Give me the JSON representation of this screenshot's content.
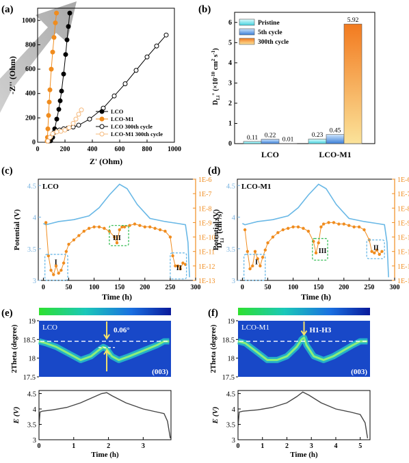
{
  "panels": {
    "a": "(a)",
    "b": "(b)",
    "c": "(c)",
    "d": "(d)",
    "e": "(e)",
    "f": "(f)"
  },
  "chart_data": [
    {
      "id": "a",
      "type": "scatter",
      "xlabel": "Z' (Ohm)",
      "ylabel": "-Z'' (Ohm)",
      "xlim": [
        0,
        1000
      ],
      "ylim": [
        0,
        1100
      ],
      "xticks": [
        0,
        200,
        400,
        600,
        800,
        1000
      ],
      "yticks": [
        0,
        200,
        400,
        600,
        800,
        1000
      ],
      "legend_position": "bottom-right",
      "series": [
        {
          "name": "LCO",
          "color": "#000000",
          "marker": "filled-circle",
          "x": [
            95,
            110,
            125,
            140,
            155,
            165,
            175,
            190,
            205,
            215,
            225,
            235
          ],
          "y": [
            12,
            40,
            110,
            190,
            270,
            340,
            420,
            560,
            720,
            840,
            950,
            1060
          ]
        },
        {
          "name": "LCO-M1",
          "color": "#f08c1e",
          "marker": "filled-circle",
          "x": [
            70,
            72,
            75,
            80,
            85,
            90,
            100,
            110,
            120,
            130,
            138
          ],
          "y": [
            10,
            40,
            110,
            220,
            330,
            430,
            600,
            740,
            860,
            980,
            1060
          ]
        },
        {
          "name": "LCO 300th cycle",
          "color": "#000000",
          "marker": "open-circle",
          "x": [
            80,
            100,
            120,
            140,
            160,
            190,
            220,
            260,
            300,
            380,
            480,
            560,
            640,
            720,
            800,
            870,
            940
          ],
          "y": [
            10,
            45,
            80,
            95,
            100,
            110,
            115,
            125,
            140,
            190,
            280,
            380,
            480,
            590,
            700,
            790,
            880
          ]
        },
        {
          "name": "LCO-M1 300th cycle",
          "color": "#f5b87a",
          "marker": "open-circle",
          "x": [
            75,
            90,
            110,
            140,
            170,
            200,
            230,
            260,
            280,
            300,
            320
          ],
          "y": [
            10,
            40,
            70,
            85,
            90,
            100,
            120,
            155,
            190,
            230,
            265
          ]
        }
      ]
    },
    {
      "id": "b",
      "type": "bar",
      "ylabel": "D Li+ (×10-10 cm2 s-1)",
      "ylabel_main": "D",
      "ylabel_sub": "Li",
      "ylabel_rest": " (×10",
      "ylabel_exp": "-10",
      "ylabel_tail": "cm",
      "categories": [
        "LCO",
        "LCO-M1"
      ],
      "ylim": [
        0,
        6.5
      ],
      "yticks": [
        0,
        1,
        2,
        3,
        4,
        5,
        6
      ],
      "legend_position": "top-left",
      "series": [
        {
          "name": "Pristine",
          "color": "#7ee8f0",
          "values": [
            0.11,
            0.23
          ]
        },
        {
          "name": "5th cycle",
          "color": "#5aa0e6",
          "values": [
            0.22,
            0.45
          ]
        },
        {
          "name": "300th cycle",
          "color": "#f39a3c",
          "values": [
            0.01,
            5.92
          ]
        }
      ],
      "value_labels": [
        "0.11",
        "0.22",
        "0.01",
        "0.23",
        "0.45",
        "5.92"
      ]
    },
    {
      "id": "c",
      "type": "line",
      "title": "LCO",
      "xlabel": "Time (h)",
      "ylabel_left": "Potential (V)",
      "ylabel_right": "D Li+ (cm2/s)",
      "xlim": [
        -10,
        300
      ],
      "xticks": [
        0,
        50,
        100,
        150,
        200,
        250,
        300
      ],
      "ylim_left": [
        3,
        4.6
      ],
      "yticks_left": [
        3,
        3.5,
        4,
        4.5
      ],
      "yticks_right": [
        "1E-6",
        "1E-7",
        "1E-8",
        "1E-9",
        "1E-10",
        "1E-11",
        "1E-12",
        "1E-13"
      ],
      "regions": [
        "I",
        "II",
        "III"
      ],
      "potential": {
        "color": "#69b8e6",
        "x": [
          0,
          5,
          15,
          30,
          60,
          90,
          110,
          130,
          150,
          165,
          185,
          210,
          240,
          265,
          280,
          285,
          288
        ],
        "y": [
          3.9,
          3.88,
          3.9,
          3.93,
          3.96,
          4.02,
          4.15,
          4.35,
          4.52,
          4.45,
          4.2,
          3.98,
          3.93,
          3.9,
          3.88,
          3.6,
          3.05
        ]
      },
      "diffusion": {
        "color": "#f08c1e",
        "x": [
          5,
          10,
          15,
          20,
          25,
          30,
          35,
          40,
          45,
          50,
          60,
          70,
          80,
          90,
          100,
          110,
          120,
          130,
          140,
          145,
          150,
          155,
          160,
          170,
          180,
          190,
          200,
          210,
          220,
          230,
          240,
          250,
          255,
          260,
          265,
          270,
          275,
          280
        ],
        "y": [
          -9.0,
          -11.3,
          -12.3,
          -12.6,
          -12.0,
          -12.5,
          -12.3,
          -11.8,
          -11.0,
          -10.5,
          -10.2,
          -9.9,
          -9.6,
          -9.4,
          -9.3,
          -9.3,
          -9.4,
          -9.6,
          -10.0,
          -10.4,
          -9.5,
          -9.3,
          -9.3,
          -9.2,
          -9.1,
          -9.2,
          -9.3,
          -9.3,
          -9.4,
          -9.5,
          -9.6,
          -10.0,
          -11.3,
          -12.0,
          -12.0,
          -12.2,
          -11.8,
          -11.9
        ]
      }
    },
    {
      "id": "d",
      "type": "line",
      "title": "LCO-M1",
      "xlabel": "Time (h)",
      "ylabel_left": "Potential (V)",
      "ylabel_right": "D Li+ (cm2/s)",
      "xlim": [
        -10,
        300
      ],
      "xticks": [
        0,
        50,
        100,
        150,
        200,
        250,
        300
      ],
      "ylim_left": [
        3,
        4.6
      ],
      "yticks_left": [
        3,
        3.5,
        4,
        4.5
      ],
      "yticks_right": [
        "1E-6",
        "1E-7",
        "1E-8",
        "1E-9",
        "1E-10",
        "1E-11",
        "1E-12",
        "1E-13"
      ],
      "regions": [
        "I",
        "III",
        "II"
      ],
      "potential": {
        "color": "#69b8e6",
        "x": [
          0,
          5,
          15,
          30,
          60,
          90,
          110,
          130,
          150,
          165,
          185,
          210,
          240,
          265,
          280,
          285,
          288
        ],
        "y": [
          3.9,
          3.88,
          3.9,
          3.93,
          3.96,
          4.02,
          4.15,
          4.35,
          4.52,
          4.45,
          4.2,
          3.98,
          3.93,
          3.9,
          3.88,
          3.6,
          3.05
        ]
      },
      "diffusion": {
        "color": "#f08c1e",
        "x": [
          5,
          10,
          15,
          20,
          25,
          30,
          35,
          40,
          45,
          50,
          60,
          70,
          80,
          90,
          100,
          110,
          120,
          130,
          140,
          145,
          150,
          155,
          160,
          170,
          180,
          190,
          200,
          210,
          220,
          230,
          240,
          250,
          255,
          260,
          265,
          270,
          275
        ],
        "y": [
          -9.5,
          -11.0,
          -12.2,
          -12.0,
          -11.0,
          -11.5,
          -12.0,
          -11.4,
          -10.9,
          -10.4,
          -10.0,
          -9.7,
          -9.5,
          -9.4,
          -9.3,
          -9.3,
          -9.4,
          -9.6,
          -10.3,
          -11.1,
          -10.4,
          -9.3,
          -9.1,
          -9.0,
          -9.0,
          -9.1,
          -9.1,
          -9.2,
          -9.3,
          -9.3,
          -9.5,
          -10.2,
          -11.0,
          -11.1,
          -10.9,
          -11.2,
          -11.0
        ]
      }
    },
    {
      "id": "e",
      "type": "heatmap",
      "title": "LCO",
      "ylabel": "2Theta (degree)",
      "ylim": [
        17.5,
        19
      ],
      "yticks": [
        17.5,
        18,
        18.5,
        19
      ],
      "peak_label": "(003)",
      "annotation": "0.06°",
      "peak_track": {
        "x": [
          0,
          0.2,
          0.5,
          0.9,
          1.2,
          1.5,
          1.7,
          1.85,
          1.95,
          2.1,
          2.3,
          2.6,
          3.0,
          3.4,
          3.6,
          3.75
        ],
        "y": [
          18.45,
          18.4,
          18.3,
          18.1,
          17.95,
          18.05,
          18.2,
          18.3,
          18.25,
          18.05,
          17.95,
          18.05,
          18.2,
          18.35,
          18.45,
          18.45
        ]
      },
      "voltage": {
        "xlabel": "Time (h)",
        "ylabel": "E (V)",
        "xlim": [
          0,
          3.8
        ],
        "xticks": [
          0,
          1,
          2,
          3
        ],
        "ylim": [
          3,
          4.6
        ],
        "yticks": [
          3,
          3.5,
          4,
          4.5
        ],
        "x": [
          0,
          0.03,
          0.1,
          0.4,
          0.8,
          1.2,
          1.5,
          1.8,
          1.95,
          2.1,
          2.5,
          3.0,
          3.4,
          3.6,
          3.7,
          3.78
        ],
        "y": [
          3.4,
          3.9,
          3.93,
          3.97,
          4.05,
          4.2,
          4.35,
          4.5,
          4.53,
          4.43,
          4.2,
          4.0,
          3.9,
          3.85,
          3.6,
          3.05
        ]
      }
    },
    {
      "id": "f",
      "type": "heatmap",
      "title": "LCO-M1",
      "ylabel": "2Theta (degree)",
      "ylim": [
        17.5,
        19
      ],
      "yticks": [
        17.5,
        18,
        18.5,
        19
      ],
      "peak_label": "(003)",
      "annotation": "H1-H3",
      "peak_track": {
        "x": [
          0,
          0.3,
          0.8,
          1.2,
          1.6,
          2.0,
          2.4,
          2.6,
          2.7,
          2.8,
          3.1,
          3.5,
          3.9,
          4.3,
          4.7,
          5.0,
          5.3
        ],
        "y": [
          18.45,
          18.4,
          18.15,
          17.95,
          17.95,
          18.05,
          18.3,
          18.5,
          18.55,
          18.35,
          18.05,
          17.95,
          18.05,
          18.2,
          18.35,
          18.45,
          18.45
        ]
      },
      "voltage": {
        "xlabel": "Time (h)",
        "ylabel": "E (V)",
        "xlim": [
          0,
          5.4
        ],
        "xticks": [
          0,
          1,
          2,
          3,
          4,
          5
        ],
        "ylim": [
          3,
          4.6
        ],
        "yticks": [
          3,
          3.5,
          4,
          4.5
        ],
        "x": [
          0,
          0.05,
          0.2,
          0.8,
          1.4,
          2.0,
          2.4,
          2.65,
          2.9,
          3.4,
          4.0,
          4.6,
          5.0,
          5.2,
          5.3
        ],
        "y": [
          3.4,
          3.9,
          3.93,
          3.97,
          4.05,
          4.2,
          4.4,
          4.55,
          4.45,
          4.2,
          4.0,
          3.9,
          3.82,
          3.55,
          3.05
        ]
      }
    }
  ],
  "colors": {
    "pristine": "#7ee8f0",
    "cycle5": "#5aa0e6",
    "cycle300": "#f39a3c",
    "potential": "#69b8e6",
    "diffusion": "#f08c1e",
    "box": "#3cbf5a"
  }
}
